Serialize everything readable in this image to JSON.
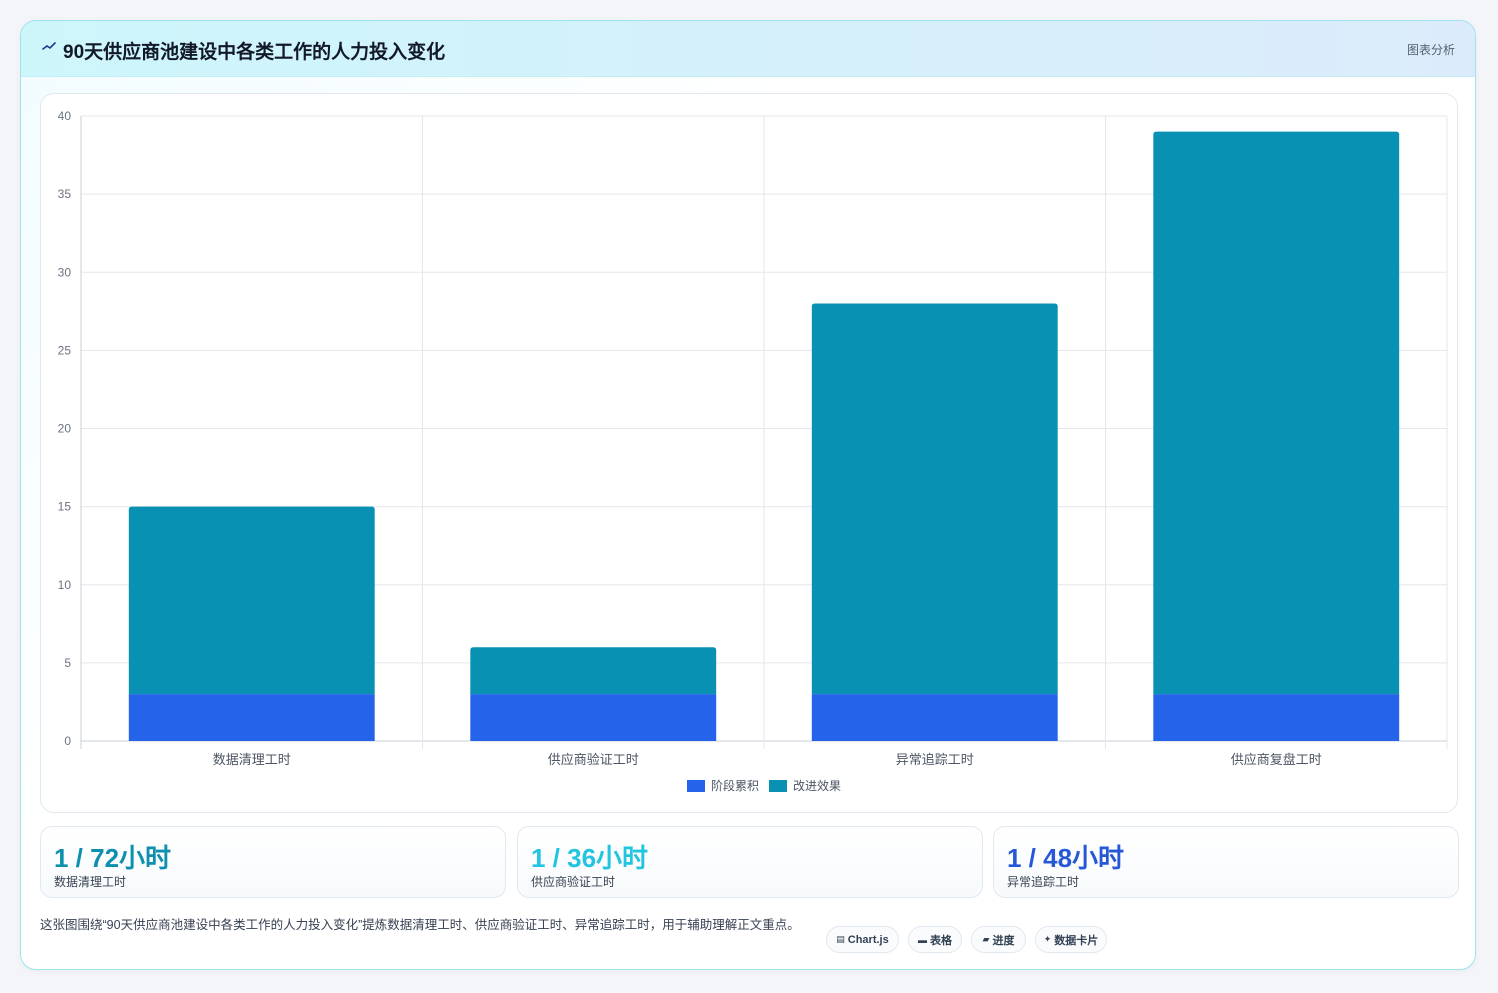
{
  "header": {
    "icon": "sparkle-icon",
    "title": "90天供应商池建设中各类工作的人力投入变化",
    "tag": "图表分析"
  },
  "colors": {
    "base": "#2563eb",
    "improve": "#0891b2",
    "stat1": "#0e8fae",
    "stat2": "#22c5e0",
    "stat3": "#2557d6"
  },
  "chart_data": {
    "type": "bar",
    "stacked": true,
    "categories": [
      "数据清理工时",
      "供应商验证工时",
      "异常追踪工时",
      "供应商复盘工时"
    ],
    "series": [
      {
        "name": "阶段累积",
        "values": [
          3,
          3,
          3,
          3
        ],
        "color": "#2563eb"
      },
      {
        "name": "改进效果",
        "values": [
          12,
          3,
          25,
          36
        ],
        "color": "#0891b2"
      }
    ],
    "ylim": [
      0,
      40
    ],
    "yticks": [
      0,
      5,
      10,
      15,
      20,
      25,
      30,
      35,
      40
    ],
    "grid": true,
    "legend": "bottom"
  },
  "stats": [
    {
      "value": "1 / 72小时",
      "label": "数据清理工时"
    },
    {
      "value": "1 / 36小时",
      "label": "供应商验证工时"
    },
    {
      "value": "1 / 48小时",
      "label": "异常追踪工时"
    }
  ],
  "description": "这张图围绕“90天供应商池建设中各类工作的人力投入变化”提炼数据清理工时、供应商验证工时、异常追踪工时，用于辅助理解正文重点。",
  "pills": [
    {
      "icon": "chart-icon",
      "glyph": "▤",
      "label": "Chart.js"
    },
    {
      "icon": "table-icon",
      "glyph": "▬",
      "label": "表格"
    },
    {
      "icon": "progress-icon",
      "glyph": "▰",
      "label": "进度"
    },
    {
      "icon": "sparkle-icon",
      "glyph": "✦",
      "label": "数据卡片"
    }
  ]
}
